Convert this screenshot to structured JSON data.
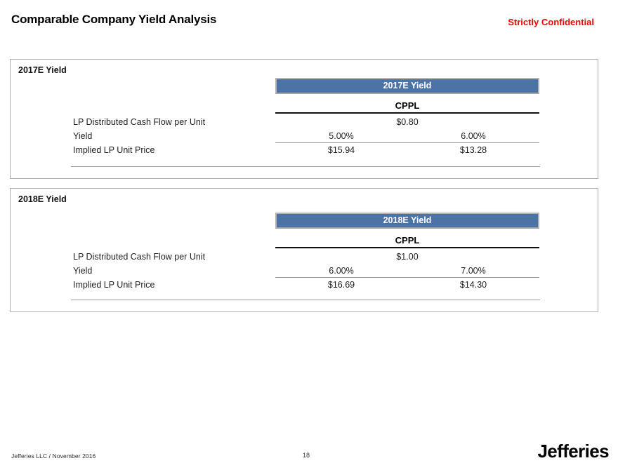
{
  "header": {
    "title": "Comparable Company Yield Analysis",
    "confidential": "Strictly Confidential"
  },
  "sections": [
    {
      "panel_label": "2017E Yield",
      "table_title": "2017E Yield",
      "column_header": "CPPL",
      "rows": [
        {
          "label": "LP Distributed Cash Flow per Unit",
          "span_value": "$0.80"
        },
        {
          "label": "Yield",
          "col1": "5.00%",
          "col2": "6.00%"
        },
        {
          "label": "Implied LP Unit Price",
          "col1": "$15.94",
          "col2": "$13.28"
        }
      ]
    },
    {
      "panel_label": "2018E Yield",
      "table_title": "2018E Yield",
      "column_header": "CPPL",
      "rows": [
        {
          "label": "LP Distributed Cash Flow per Unit",
          "span_value": "$1.00"
        },
        {
          "label": "Yield",
          "col1": "6.00%",
          "col2": "7.00%"
        },
        {
          "label": "Implied LP Unit Price",
          "col1": "$16.69",
          "col2": "$14.30"
        }
      ]
    }
  ],
  "footer": {
    "left": "Jefferies LLC  /  November 2016",
    "page_number": "18",
    "logo": "Jefferies"
  },
  "colors": {
    "table_header_bg": "#4c73a5",
    "table_header_border": "#b3b3b3",
    "confidential_red": "#fb0000",
    "panel_border": "#b0b0b0",
    "rule_gray": "#9a9a9a"
  }
}
